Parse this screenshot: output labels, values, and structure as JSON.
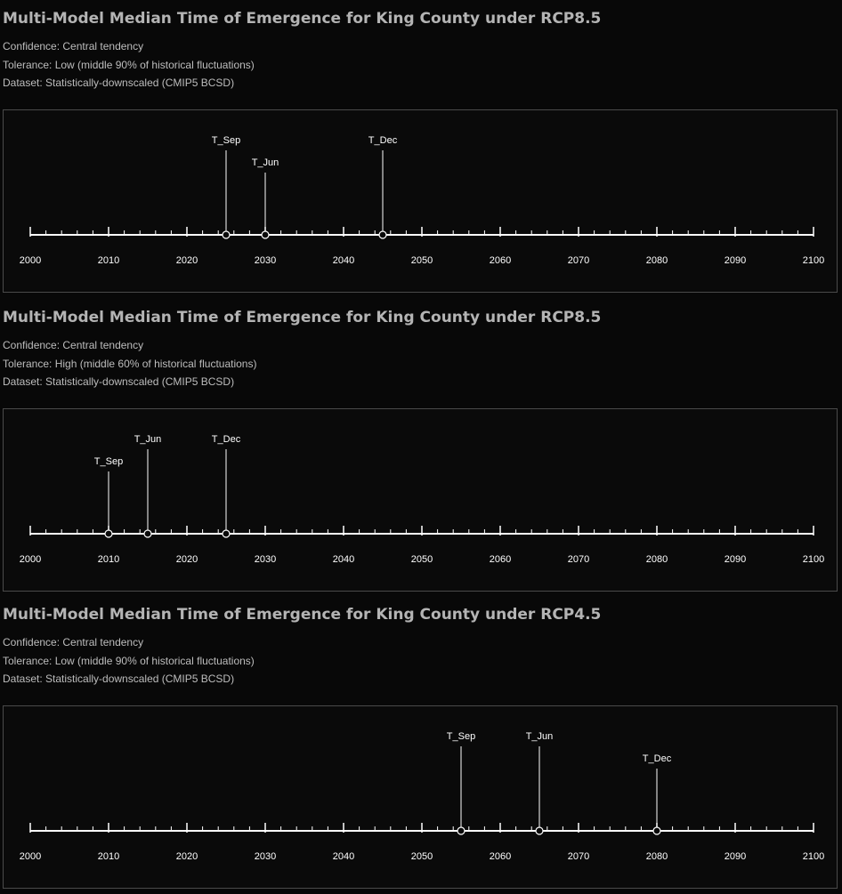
{
  "colors": {
    "background": "#080808",
    "title": "#b4b4b4",
    "text": "#bdbdbd",
    "axis": "#ffffff",
    "panel_border": "#4a4a4a"
  },
  "sections": [
    {
      "title": "Multi-Model Median Time of Emergence for King County under RCP8.5",
      "confidence": "Confidence: Central tendency",
      "tolerance": "Tolerance: Low (middle 90% of historical fluctuations)",
      "dataset": "Dataset: Statistically-downscaled (CMIP5 BCSD)"
    },
    {
      "title": "Multi-Model Median Time of Emergence for King County under RCP8.5",
      "confidence": "Confidence: Central tendency",
      "tolerance": "Tolerance: High (middle 60% of historical fluctuations)",
      "dataset": "Dataset: Statistically-downscaled (CMIP5 BCSD)"
    },
    {
      "title": "Multi-Model Median Time of Emergence for King County under RCP4.5",
      "confidence": "Confidence: Central tendency",
      "tolerance": "Tolerance: Low (middle 90% of historical fluctuations)",
      "dataset": "Dataset: Statistically-downscaled (CMIP5 BCSD)"
    }
  ],
  "chart_data": [
    {
      "type": "timeline",
      "xlim": [
        2000,
        2100
      ],
      "major_ticks": [
        2000,
        2010,
        2020,
        2030,
        2040,
        2050,
        2060,
        2070,
        2080,
        2090,
        2100
      ],
      "minor_tick_step": 2,
      "tick_labels": [
        "2000",
        "2010",
        "2020",
        "2030",
        "2040",
        "2050",
        "2060",
        "2070",
        "2080",
        "2090",
        "2100"
      ],
      "events": [
        {
          "label": "T_Sep",
          "year": 2025,
          "tier": 1
        },
        {
          "label": "T_Jun",
          "year": 2030,
          "tier": 2
        },
        {
          "label": "T_Dec",
          "year": 2045,
          "tier": 1
        }
      ]
    },
    {
      "type": "timeline",
      "xlim": [
        2000,
        2100
      ],
      "major_ticks": [
        2000,
        2010,
        2020,
        2030,
        2040,
        2050,
        2060,
        2070,
        2080,
        2090,
        2100
      ],
      "minor_tick_step": 2,
      "tick_labels": [
        "2000",
        "2010",
        "2020",
        "2030",
        "2040",
        "2050",
        "2060",
        "2070",
        "2080",
        "2090",
        "2100"
      ],
      "events": [
        {
          "label": "T_Sep",
          "year": 2010,
          "tier": 2
        },
        {
          "label": "T_Jun",
          "year": 2015,
          "tier": 1
        },
        {
          "label": "T_Dec",
          "year": 2025,
          "tier": 1
        }
      ]
    },
    {
      "type": "timeline",
      "xlim": [
        2000,
        2100
      ],
      "major_ticks": [
        2000,
        2010,
        2020,
        2030,
        2040,
        2050,
        2060,
        2070,
        2080,
        2090,
        2100
      ],
      "minor_tick_step": 2,
      "tick_labels": [
        "2000",
        "2010",
        "2020",
        "2030",
        "2040",
        "2050",
        "2060",
        "2070",
        "2080",
        "2090",
        "2100"
      ],
      "events": [
        {
          "label": "T_Sep",
          "year": 2055,
          "tier": 1
        },
        {
          "label": "T_Jun",
          "year": 2065,
          "tier": 1
        },
        {
          "label": "T_Dec",
          "year": 2080,
          "tier": 2
        }
      ]
    }
  ]
}
